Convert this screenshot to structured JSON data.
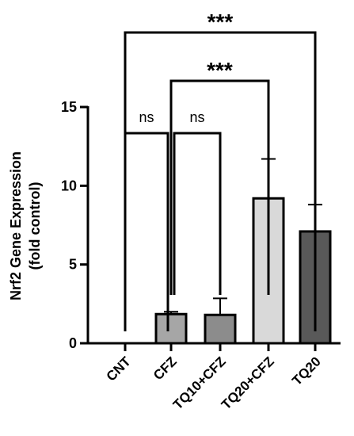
{
  "chart_data": {
    "type": "bar",
    "categories": [
      "CNT",
      "CFZ",
      "TQ10+CFZ",
      "TQ20+CFZ",
      "TQ20"
    ],
    "values": [
      0,
      1.85,
      1.8,
      9.2,
      7.1
    ],
    "errors": [
      0,
      0.15,
      1.05,
      2.5,
      1.7
    ],
    "colors": [
      "#ffffff",
      "#a6a6a6",
      "#8c8c8c",
      "#d9d9d9",
      "#595959"
    ],
    "ylabel_line1": "Nrf2 Gene Expression",
    "ylabel_line2": "(fold control)",
    "ylim": [
      0,
      15
    ],
    "yticks": [
      "0",
      "5",
      "10",
      "15"
    ],
    "significance": [
      {
        "from": "CNT",
        "to": "CFZ",
        "label": "ns"
      },
      {
        "from": "CFZ",
        "to": "TQ10+CFZ",
        "label": "ns"
      },
      {
        "from": "CFZ",
        "to": "TQ20+CFZ",
        "label": "***"
      },
      {
        "from": "CNT",
        "to": "TQ20",
        "label": "***"
      }
    ]
  }
}
